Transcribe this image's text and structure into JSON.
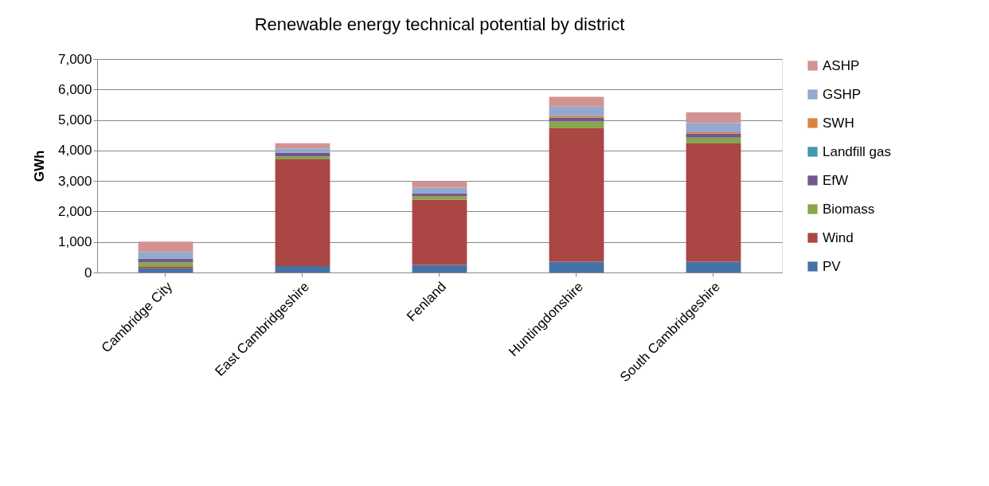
{
  "chart_data": {
    "type": "bar",
    "title": "Renewable energy technical potential by district",
    "ylabel": "GWh",
    "stacked": true,
    "categories": [
      "Cambridge City",
      "East Cambridgeshire",
      "Fenland",
      "Huntingdonshire",
      "South Cambridgeshire"
    ],
    "series": [
      {
        "name": "PV",
        "color": "#4572a7",
        "values": [
          140,
          210,
          250,
          350,
          350
        ]
      },
      {
        "name": "Wind",
        "color": "#aa4643",
        "values": [
          40,
          3500,
          2140,
          4380,
          3880
        ]
      },
      {
        "name": "Biomass",
        "color": "#89a54e",
        "values": [
          150,
          100,
          120,
          220,
          190
        ]
      },
      {
        "name": "EfW",
        "color": "#71588f",
        "values": [
          130,
          120,
          90,
          130,
          130
        ]
      },
      {
        "name": "Landfill gas",
        "color": "#4198af",
        "values": [
          0,
          0,
          0,
          0,
          0
        ]
      },
      {
        "name": "SWH",
        "color": "#db843d",
        "values": [
          0,
          0,
          0,
          60,
          50
        ]
      },
      {
        "name": "GSHP",
        "color": "#93a9cf",
        "values": [
          210,
          140,
          180,
          300,
          300
        ]
      },
      {
        "name": "ASHP",
        "color": "#d19392",
        "values": [
          340,
          170,
          220,
          320,
          350
        ]
      }
    ],
    "ylim": [
      0,
      7000
    ],
    "yticks": [
      0,
      {
        "value": 1000,
        "label": "1,000"
      },
      {
        "value": 2000,
        "label": "2,000"
      },
      {
        "value": 3000,
        "label": "3,000"
      },
      {
        "value": 4000,
        "label": "4,000"
      },
      {
        "value": 5000,
        "label": "5,000"
      },
      {
        "value": 6000,
        "label": "6,000"
      },
      {
        "value": 7000,
        "label": "7,000"
      }
    ],
    "grid": "y",
    "legend": "right"
  }
}
